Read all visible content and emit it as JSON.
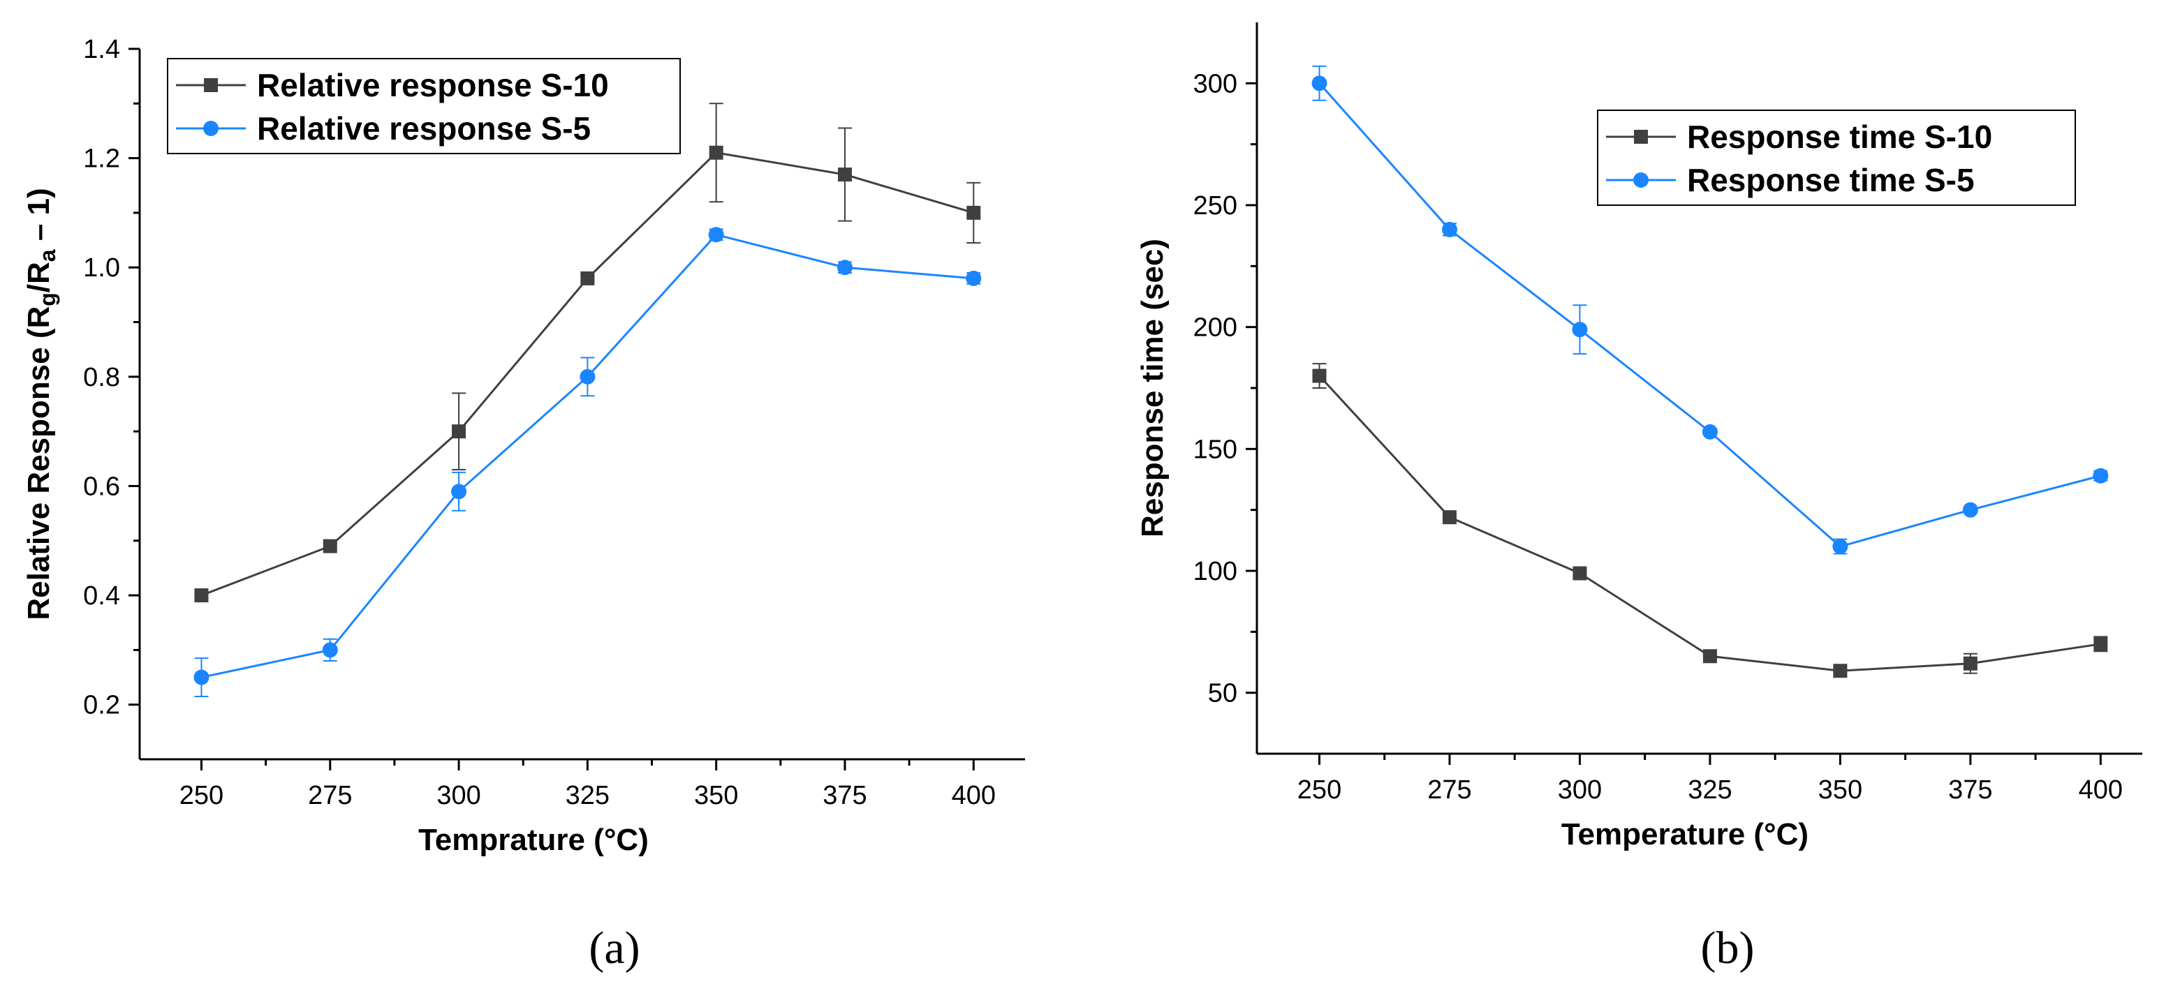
{
  "chart_data": [
    {
      "type": "line",
      "panel_label": "(a)",
      "xlabel": "Temprature (°C)",
      "ylabel_parts": [
        "Relative Response (R",
        "g",
        "/R",
        "a",
        " – 1)"
      ],
      "x": [
        250,
        275,
        300,
        325,
        350,
        375,
        400
      ],
      "xticks": [
        250,
        275,
        300,
        325,
        350,
        375,
        400
      ],
      "xlim": [
        238,
        410
      ],
      "ylim": [
        0.1,
        1.4
      ],
      "yticks": [
        0.2,
        0.4,
        0.6,
        0.8,
        1.0,
        1.2,
        1.4
      ],
      "ytick_labels": [
        "0.2",
        "0.4",
        "0.6",
        "0.8",
        "1.0",
        "1.2",
        "1.4"
      ],
      "legend_position": "top-left",
      "series": [
        {
          "name": "Relative response S-10",
          "color": "#404040",
          "marker": "square",
          "values": [
            0.4,
            0.49,
            0.7,
            0.98,
            1.21,
            1.17,
            1.1
          ],
          "errors": [
            0.005,
            0.005,
            0.07,
            0.005,
            0.09,
            0.085,
            0.055
          ]
        },
        {
          "name": "Relative response S-5",
          "color": "#1a85ff",
          "marker": "circle",
          "values": [
            0.25,
            0.3,
            0.59,
            0.8,
            1.06,
            1.0,
            0.98
          ],
          "errors": [
            0.035,
            0.02,
            0.035,
            0.035,
            0.01,
            0.01,
            0.01
          ]
        }
      ]
    },
    {
      "type": "line",
      "panel_label": "(b)",
      "xlabel": "Temperature (°C)",
      "ylabel_parts": [
        "Response time (sec)"
      ],
      "x": [
        250,
        275,
        300,
        325,
        350,
        375,
        400
      ],
      "xticks": [
        250,
        275,
        300,
        325,
        350,
        375,
        400
      ],
      "xlim": [
        238,
        408
      ],
      "ylim": [
        25,
        325
      ],
      "yticks": [
        50,
        100,
        150,
        200,
        250,
        300
      ],
      "ytick_labels": [
        "50",
        "100",
        "150",
        "200",
        "250",
        "300"
      ],
      "legend_position": "top-right",
      "series": [
        {
          "name": "Response time S-10",
          "color": "#404040",
          "marker": "square",
          "values": [
            180,
            122,
            99,
            65,
            59,
            62,
            70
          ],
          "errors": [
            5,
            1,
            1,
            1,
            1,
            4,
            3
          ]
        },
        {
          "name": "Response time S-5",
          "color": "#1a85ff",
          "marker": "circle",
          "values": [
            300,
            240,
            199,
            157,
            110,
            125,
            139
          ],
          "errors": [
            7,
            2.5,
            10,
            1,
            3,
            1,
            2
          ]
        }
      ]
    }
  ]
}
